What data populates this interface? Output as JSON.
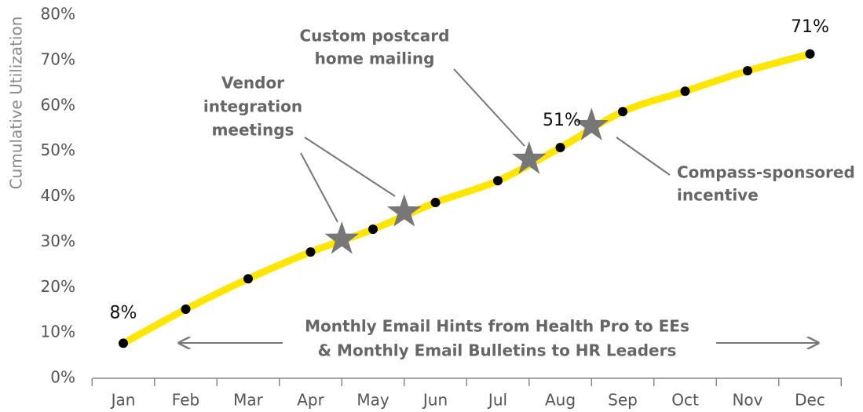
{
  "chart_data": {
    "type": "line",
    "y_axis_label": "Cumulative Utilization",
    "categories": [
      "Jan",
      "Feb",
      "Mar",
      "Apr",
      "May",
      "Jun",
      "Jul",
      "Aug",
      "Sep",
      "Oct",
      "Nov",
      "Dec"
    ],
    "series": [
      {
        "color": "#ffe600",
        "values": [
          7.7,
          15.2,
          21.9,
          27.8,
          32.8,
          38.7,
          43.5,
          50.8,
          58.7,
          63.2,
          67.7,
          71.4
        ],
        "value_labels": [
          "8%",
          null,
          null,
          null,
          null,
          null,
          null,
          "51%",
          null,
          null,
          null,
          "71%"
        ]
      }
    ],
    "ylim": [
      0,
      80
    ],
    "yticks": [
      {
        "value": 0,
        "label": "0%"
      },
      {
        "value": 10,
        "label": "10%"
      },
      {
        "value": 20,
        "label": "20%"
      },
      {
        "value": 30,
        "label": "30%"
      },
      {
        "value": 40,
        "label": "40%"
      },
      {
        "value": 50,
        "label": "50%"
      },
      {
        "value": 60,
        "label": "60%"
      },
      {
        "value": 70,
        "label": "70%"
      },
      {
        "value": 80,
        "label": "80%"
      }
    ],
    "markers": [
      {
        "x": 3.5,
        "value": 30.6
      },
      {
        "x": 4.5,
        "value": 36.6
      },
      {
        "x": 6.5,
        "value": 48.2
      },
      {
        "x": 7.5,
        "value": 55.6
      }
    ],
    "marker_color": "#777777",
    "annotations": [
      {
        "lines": [
          "Custom postcard",
          "home mailing"
        ]
      },
      {
        "lines": [
          "Vendor",
          "integration",
          "meetings"
        ]
      },
      {
        "lines": [
          "Compass-sponsored",
          "incentive"
        ]
      },
      {
        "lines": [
          "Monthly Email Hints from Health Pro to EEs",
          "& Monthly Email Bulletins to HR Leaders"
        ]
      }
    ]
  }
}
